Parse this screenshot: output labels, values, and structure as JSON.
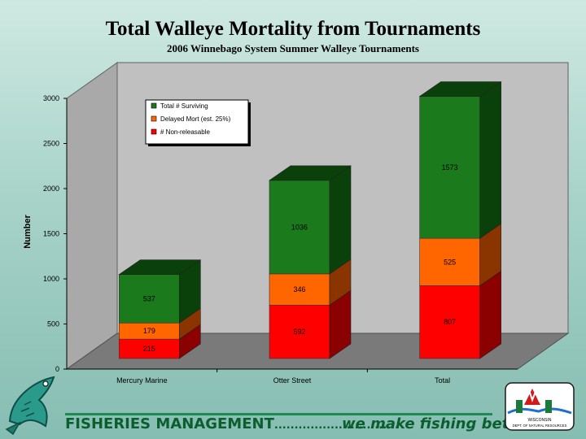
{
  "header": {
    "title": "Total Walleye Mortality from Tournaments",
    "subtitle": "2006 Winnebago System Summer Walleye Tournaments"
  },
  "chart_data": {
    "type": "bar",
    "stacked": true,
    "three_d": true,
    "categories": [
      "Mercury Marine",
      "Otter Street",
      "Total"
    ],
    "series": [
      {
        "name": "# Non-releasable",
        "values": [
          215,
          592,
          807
        ],
        "color": "#ff0000",
        "side": "#8b0000"
      },
      {
        "name": "Delayed Mort (est. 25%)",
        "values": [
          179,
          346,
          525
        ],
        "color": "#ff6600",
        "side": "#8a3400"
      },
      {
        "name": "Total # Surviving",
        "values": [
          537,
          1036,
          1573
        ],
        "color": "#1b7a1b",
        "side": "#0a400a"
      }
    ],
    "ylabel": "Number",
    "xlabel": "",
    "ylim": [
      0,
      3000
    ],
    "yticks": [
      0,
      500,
      1000,
      1500,
      2000,
      2500,
      3000
    ],
    "legend": "top-left",
    "grid": false
  },
  "footer": {
    "left": "FISHERIES MANAGEMENT",
    "dots": "...............................",
    "right": "we make fishing better"
  },
  "logo": {
    "lines": [
      "WISCONSIN",
      "DEPT. OF NATURAL RESOURCES"
    ]
  }
}
